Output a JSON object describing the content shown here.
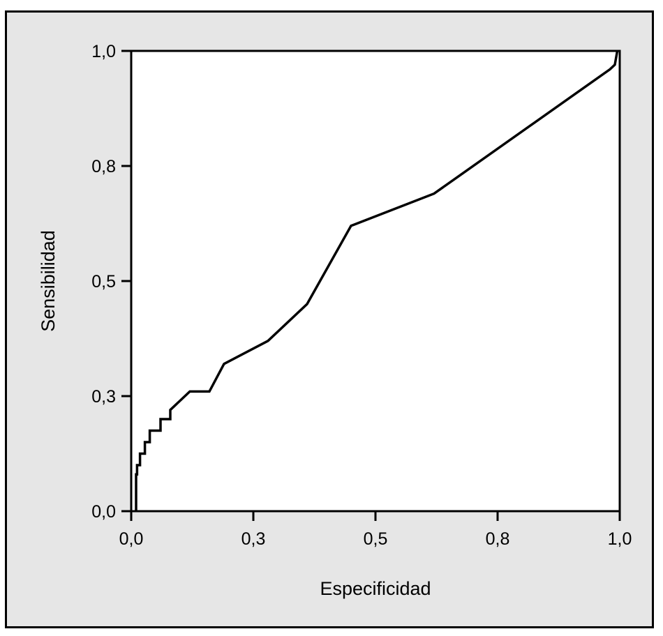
{
  "chart_data": {
    "type": "line",
    "title": "",
    "xlabel": "Especificidad",
    "ylabel": "Sensibilidad",
    "xlim": [
      0,
      1
    ],
    "ylim": [
      0,
      1
    ],
    "grid": false,
    "legend": "none",
    "x_tick_labels": [
      "0,0",
      "0,3",
      "0,5",
      "0,8",
      "1,0"
    ],
    "y_tick_labels": [
      "0,0",
      "0,3",
      "0,5",
      "0,8",
      "1,0"
    ],
    "series": [
      {
        "color": "#000000",
        "x": [
          0.01,
          0.01,
          0.012,
          0.012,
          0.018,
          0.018,
          0.028,
          0.028,
          0.038,
          0.038,
          0.06,
          0.06,
          0.08,
          0.08,
          0.12,
          0.16,
          0.19,
          0.28,
          0.36,
          0.45,
          0.62,
          0.98,
          0.99,
          0.995
        ],
        "y": [
          0.0,
          0.08,
          0.08,
          0.1,
          0.1,
          0.125,
          0.125,
          0.15,
          0.15,
          0.175,
          0.175,
          0.2,
          0.2,
          0.22,
          0.26,
          0.26,
          0.32,
          0.37,
          0.45,
          0.62,
          0.69,
          0.96,
          0.97,
          1.0
        ]
      }
    ]
  }
}
